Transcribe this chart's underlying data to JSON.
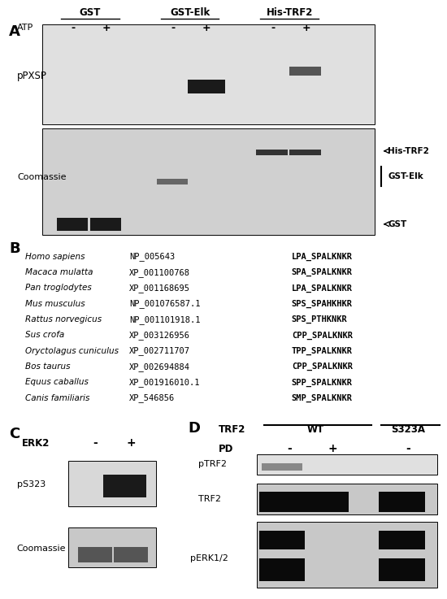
{
  "panel_A": {
    "label": "A",
    "headers": [
      "GST",
      "GST-Elk",
      "His-TRF2"
    ],
    "atp_labels": [
      "-",
      "+",
      "-",
      "+",
      "-",
      "+"
    ],
    "row_labels": [
      "pPXSP",
      "Coomassie"
    ],
    "right_labels": [
      "His-TRF2",
      "GST-Elk",
      "GST"
    ],
    "bg_top": "#d8d8d8",
    "bg_bottom": "#c8c8c8"
  },
  "panel_B": {
    "label": "B",
    "species": [
      [
        "Homo sapiens",
        "NP_005643",
        "LPA̲SPALKNKR"
      ],
      [
        "Macaca mulatta",
        "XP_001100768",
        "SPA̲SPALKNKR"
      ],
      [
        "Pan troglodytes",
        "XP_001168695",
        "LPA̲SPALKNKR"
      ],
      [
        "Mus musculus",
        "NP_001076587.1",
        "SPS̲SPAHKHKR"
      ],
      [
        "Rattus norvegicus",
        "NP_001101918.1",
        "SPS̲PTHKNKR"
      ],
      [
        "Sus crofa",
        "XP_003126956",
        "CPP̲SPALKNKR"
      ],
      [
        "Oryctolagus cuniculus",
        "XP_002711707",
        "TPP̲SPALKNKR"
      ],
      [
        "Bos taurus",
        "XP_002694884",
        "CPP̲SPALKNKR"
      ],
      [
        "Equus caballus",
        "XP_001916010.1",
        "SPP̲SPALKNKR"
      ],
      [
        "Canis familiaris",
        "XP_546856",
        "SMP̲SPALKNKR"
      ]
    ]
  },
  "panel_C": {
    "label": "C",
    "erk2_labels": [
      "-",
      "+"
    ],
    "row_labels": [
      "pS323",
      "Coomassie"
    ]
  },
  "panel_D": {
    "label": "D",
    "trf2_label": "TRF2",
    "wt_label": "WT",
    "s323a_label": "S323A",
    "pd_labels": [
      "-",
      "+",
      "-"
    ],
    "row_labels": [
      "pTRF2",
      "TRF2",
      "pERK1/2"
    ]
  }
}
